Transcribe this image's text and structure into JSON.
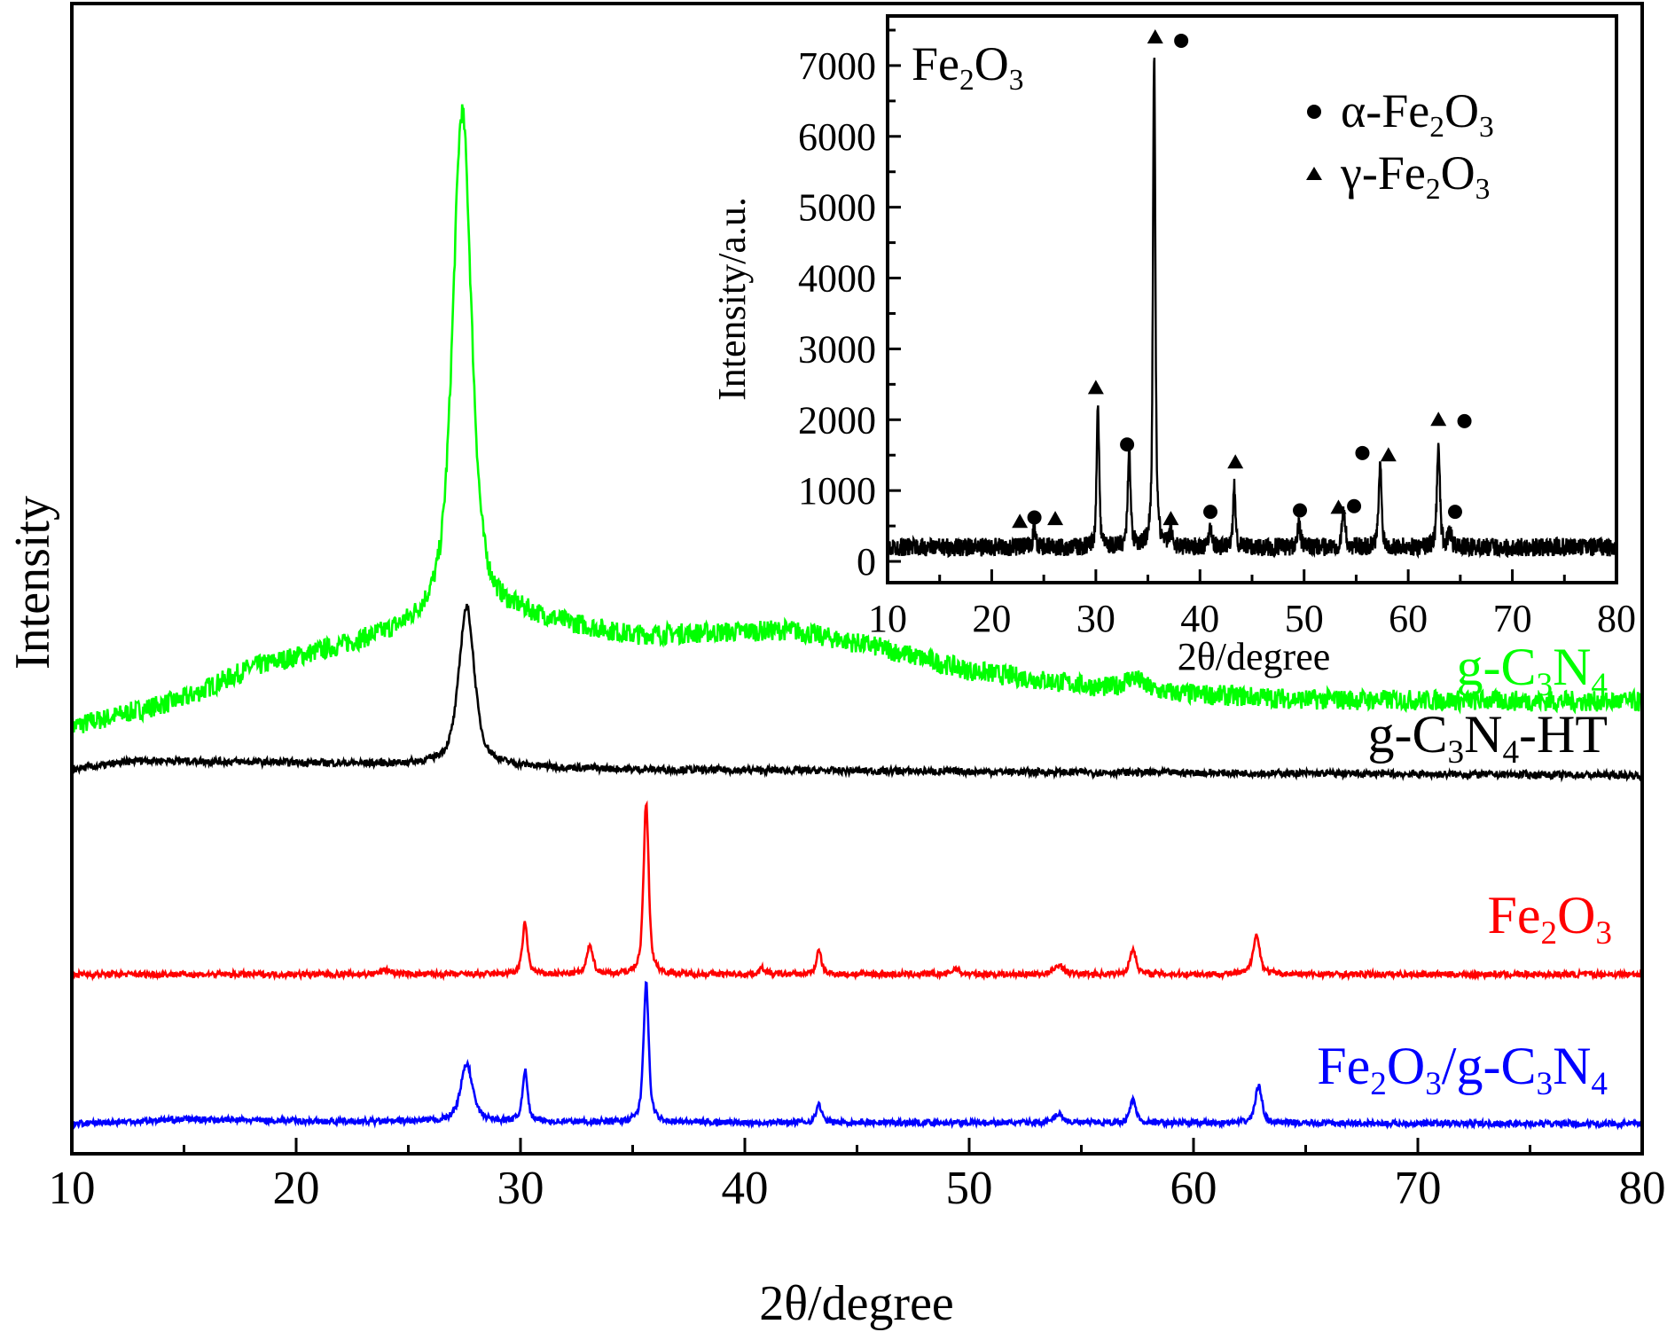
{
  "chart_data": [
    {
      "type": "line",
      "title": "",
      "xlabel": "2θ/degree",
      "ylabel": "Intensity",
      "xlim": [
        10,
        80
      ],
      "ylim": [
        0,
        1000
      ],
      "y_units": "arbitrary (stacked offset)",
      "xticks": [
        "10",
        "20",
        "30",
        "40",
        "50",
        "60",
        "70",
        "80"
      ],
      "grid": false,
      "series": [
        {
          "name": "g-C3N4",
          "color": "#00ff00",
          "background": [
            [
              10,
              371
            ],
            [
              15,
              395
            ],
            [
              18,
              422
            ],
            [
              22,
              440
            ],
            [
              26,
              458
            ],
            [
              30,
              466
            ],
            [
              35,
              450
            ],
            [
              42,
              455
            ],
            [
              46,
              440
            ],
            [
              50,
              420
            ],
            [
              57,
              402
            ],
            [
              65,
              395
            ],
            [
              80,
              393
            ]
          ],
          "peaks": [
            [
              27.4,
              445,
              0.55
            ],
            [
              57.3,
              12,
              0.6
            ]
          ],
          "noise": 9
        },
        {
          "name": "g-C3N4-HT",
          "color": "#000000",
          "background": [
            [
              10,
              334
            ],
            [
              13,
              342
            ],
            [
              20,
              340
            ],
            [
              26,
              338
            ],
            [
              35,
              334
            ],
            [
              80,
              329
            ]
          ],
          "peaks": [
            [
              27.6,
              138,
              0.45
            ]
          ],
          "noise": 3
        },
        {
          "name": "Fe2O3",
          "color": "#ff0000",
          "background": [
            [
              10,
              156
            ],
            [
              80,
              156
            ]
          ],
          "peaks": [
            [
              24,
              4,
              0.3
            ],
            [
              30.2,
              44,
              0.15
            ],
            [
              33.1,
              25,
              0.18
            ],
            [
              35.6,
              149,
              0.15
            ],
            [
              40.8,
              5,
              0.2
            ],
            [
              43.3,
              20,
              0.15
            ],
            [
              49.4,
              5,
              0.2
            ],
            [
              54,
              8,
              0.25
            ],
            [
              57.3,
              22,
              0.18
            ],
            [
              62.8,
              34,
              0.2
            ]
          ],
          "noise": 2.5
        },
        {
          "name": "Fe2O3/g-C3N4",
          "color": "#0000ff",
          "background": [
            [
              10,
              26
            ],
            [
              15,
              30
            ],
            [
              22,
              28
            ],
            [
              80,
              26
            ]
          ],
          "peaks": [
            [
              27.6,
              50,
              0.35
            ],
            [
              30.2,
              44,
              0.15
            ],
            [
              35.6,
              121,
              0.15
            ],
            [
              43.3,
              16,
              0.15
            ],
            [
              54,
              8,
              0.25
            ],
            [
              57.3,
              20,
              0.18
            ],
            [
              62.9,
              32,
              0.2
            ]
          ],
          "noise": 2.5
        }
      ]
    },
    {
      "type": "line",
      "title": "Fe2O3",
      "xlabel": "2θ/degree",
      "ylabel": "Intensity/a.u.",
      "xlim": [
        10,
        80
      ],
      "ylim": [
        -300,
        7700
      ],
      "xticks": [
        "10",
        "20",
        "30",
        "40",
        "50",
        "60",
        "70",
        "80"
      ],
      "yticks": [
        "0",
        "1000",
        "2000",
        "3000",
        "4000",
        "5000",
        "6000",
        "7000"
      ],
      "series": [
        {
          "name": "Fe2O3",
          "color": "#000000",
          "background": [
            [
              10,
              200
            ],
            [
              80,
              200
            ]
          ],
          "peaks": [
            [
              24.1,
              250,
              0.2
            ],
            [
              30.2,
              2100,
              0.15
            ],
            [
              33.2,
              1350,
              0.18
            ],
            [
              35.6,
              6900,
              0.15
            ],
            [
              37.2,
              200,
              0.2
            ],
            [
              41,
              300,
              0.2
            ],
            [
              43.3,
              850,
              0.15
            ],
            [
              49.5,
              300,
              0.2
            ],
            [
              53.8,
              500,
              0.2
            ],
            [
              57.3,
              1150,
              0.18
            ],
            [
              62.9,
              1500,
              0.18
            ],
            [
              64,
              200,
              0.2
            ]
          ],
          "noise": 130
        }
      ],
      "legend": {
        "placement": "top-right",
        "entries": [
          "α-Fe2O3",
          "γ-Fe2O3"
        ]
      },
      "markers": {
        "alpha": [
          [
            24.1,
            620
          ],
          [
            33,
            1650
          ],
          [
            38.2,
            7350
          ],
          [
            41,
            700
          ],
          [
            49.6,
            720
          ],
          [
            54.8,
            780
          ],
          [
            55.6,
            1530
          ],
          [
            64.5,
            700
          ],
          [
            65.4,
            1980
          ]
        ],
        "gamma": [
          [
            22.7,
            560
          ],
          [
            26.1,
            600
          ],
          [
            30,
            2450
          ],
          [
            35.7,
            7400
          ],
          [
            37.2,
            600
          ],
          [
            43.4,
            1400
          ],
          [
            53.3,
            760
          ],
          [
            58.1,
            1500
          ],
          [
            62.9,
            2000
          ]
        ]
      }
    }
  ]
}
